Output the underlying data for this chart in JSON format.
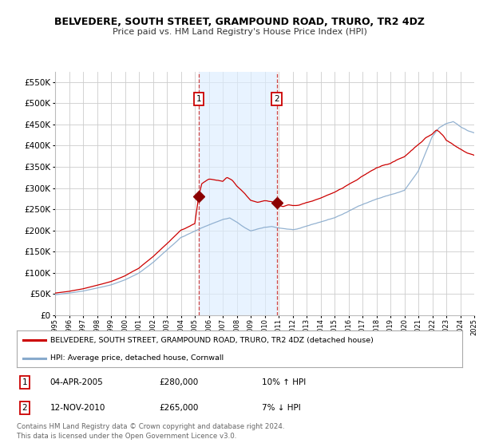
{
  "title": "BELVEDERE, SOUTH STREET, GRAMPOUND ROAD, TRURO, TR2 4DZ",
  "subtitle": "Price paid vs. HM Land Registry's House Price Index (HPI)",
  "legend_line1": "BELVEDERE, SOUTH STREET, GRAMPOUND ROAD, TRURO, TR2 4DZ (detached house)",
  "legend_line2": "HPI: Average price, detached house, Cornwall",
  "annotation1_label": "1",
  "annotation1_date": "04-APR-2005",
  "annotation1_price": "£280,000",
  "annotation1_hpi": "10% ↑ HPI",
  "annotation1_year": 2005.28,
  "annotation1_value": 280000,
  "annotation2_label": "2",
  "annotation2_date": "12-NOV-2010",
  "annotation2_price": "£265,000",
  "annotation2_hpi": "7% ↓ HPI",
  "annotation2_year": 2010.87,
  "annotation2_value": 265000,
  "footer_line1": "Contains HM Land Registry data © Crown copyright and database right 2024.",
  "footer_line2": "This data is licensed under the Open Government Licence v3.0.",
  "ylim": [
    0,
    575000
  ],
  "yticks": [
    0,
    50000,
    100000,
    150000,
    200000,
    250000,
    300000,
    350000,
    400000,
    450000,
    500000,
    550000
  ],
  "background_color": "#ffffff",
  "plot_bg_color": "#ffffff",
  "grid_color": "#cccccc",
  "red_color": "#cc0000",
  "blue_color": "#88aacc",
  "shade_color": "#ddeeff",
  "xmin": 1995,
  "xmax": 2025
}
